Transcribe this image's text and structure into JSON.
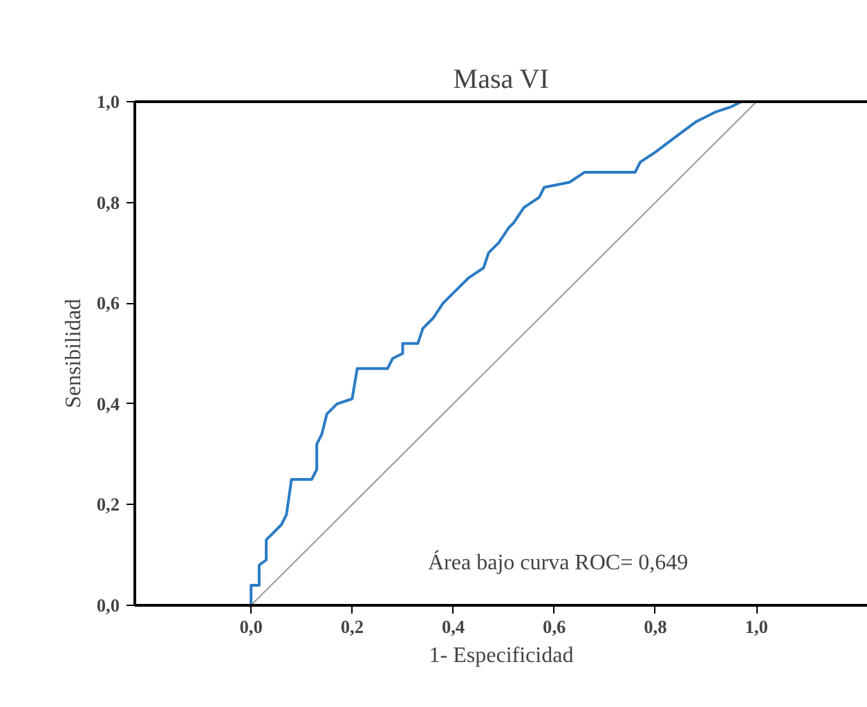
{
  "chart_data": {
    "type": "line",
    "title": "Masa VI",
    "xlabel": "1- Especificidad",
    "ylabel": "Sensibilidad",
    "xlim": [
      -0.23,
      1.22
    ],
    "ylim": [
      0,
      1
    ],
    "xticks": [
      {
        "value": 0,
        "label": "0,0"
      },
      {
        "value": 0.2,
        "label": "0,2"
      },
      {
        "value": 0.4,
        "label": "0,4"
      },
      {
        "value": 0.6,
        "label": "0,6"
      },
      {
        "value": 0.8,
        "label": "0,8"
      },
      {
        "value": 1,
        "label": "1,0"
      }
    ],
    "yticks": [
      {
        "value": 0,
        "label": "0,0"
      },
      {
        "value": 0.2,
        "label": "0,2"
      },
      {
        "value": 0.4,
        "label": "0,4"
      },
      {
        "value": 0.6,
        "label": "0,6"
      },
      {
        "value": 0.8,
        "label": "0,8"
      },
      {
        "value": 1,
        "label": "1,0"
      }
    ],
    "grid": false,
    "annotations": [
      "Área bajo curva ROC= 0,649"
    ],
    "series": [
      {
        "color": "#2b7bc4",
        "x": [
          0,
          0,
          0.016,
          0.016,
          0.03,
          0.03,
          0.05,
          0.06,
          0.07,
          0.08,
          0.12,
          0.13,
          0.13,
          0.14,
          0.15,
          0.17,
          0.2,
          0.21,
          0.27,
          0.28,
          0.3,
          0.3,
          0.33,
          0.34,
          0.36,
          0.38,
          0.41,
          0.43,
          0.46,
          0.47,
          0.49,
          0.51,
          0.52,
          0.54,
          0.57,
          0.58,
          0.63,
          0.66,
          0.76,
          0.77,
          0.8,
          0.84,
          0.88,
          0.92,
          0.95,
          0.97
        ],
        "values": [
          0,
          0.04,
          0.04,
          0.08,
          0.09,
          0.13,
          0.15,
          0.16,
          0.18,
          0.25,
          0.25,
          0.27,
          0.32,
          0.34,
          0.38,
          0.4,
          0.41,
          0.47,
          0.47,
          0.49,
          0.5,
          0.52,
          0.52,
          0.55,
          0.57,
          0.6,
          0.63,
          0.65,
          0.67,
          0.7,
          0.72,
          0.75,
          0.76,
          0.79,
          0.81,
          0.83,
          0.84,
          0.86,
          0.86,
          0.88,
          0.9,
          0.93,
          0.96,
          0.98,
          0.99,
          1.0
        ]
      },
      {
        "color": "#999999",
        "x": [
          0,
          1
        ],
        "values": [
          0,
          1
        ]
      }
    ]
  }
}
